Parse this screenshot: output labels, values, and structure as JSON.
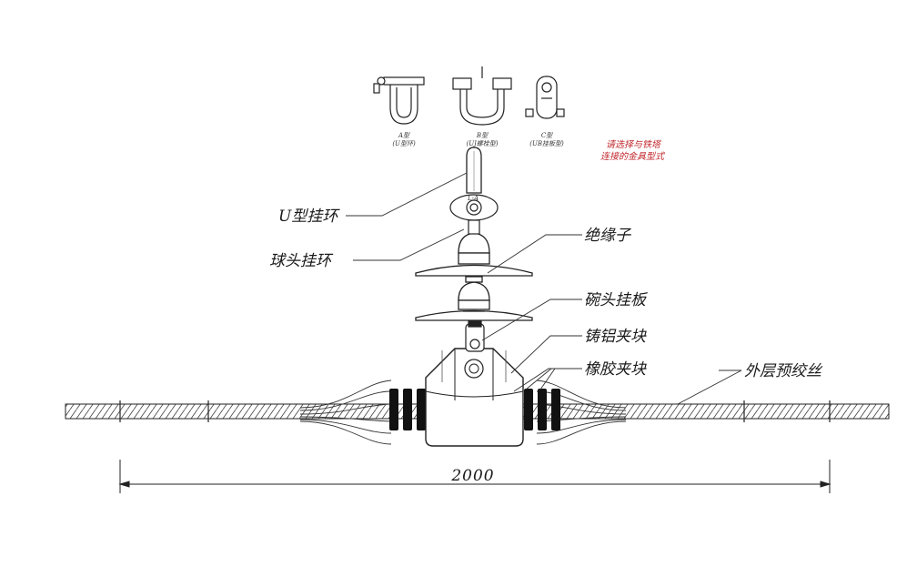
{
  "labels": {
    "u_ring": "U型挂环",
    "ball_ring": "球头挂环",
    "insulator": "绝缘子",
    "socket_plate": "碗头挂板",
    "cast_al_clamp": "铸铝夹块",
    "rubber_clamp": "橡胶夹块",
    "outer_rods": "外层预绞丝"
  },
  "dimension": "2000",
  "hardware_types": [
    {
      "name": "A型",
      "desc": "(U型环)"
    },
    {
      "name": "B型",
      "desc": "(UJ螺栓型)"
    },
    {
      "name": "C型",
      "desc": "(UB挂板型)"
    }
  ],
  "note_line1": "请选择与铁塔",
  "note_line2": "连接的金具型式",
  "small_mark": "L-A",
  "colors": {
    "line": "#222222",
    "note": "#c0282d",
    "rubber": "#111111"
  }
}
